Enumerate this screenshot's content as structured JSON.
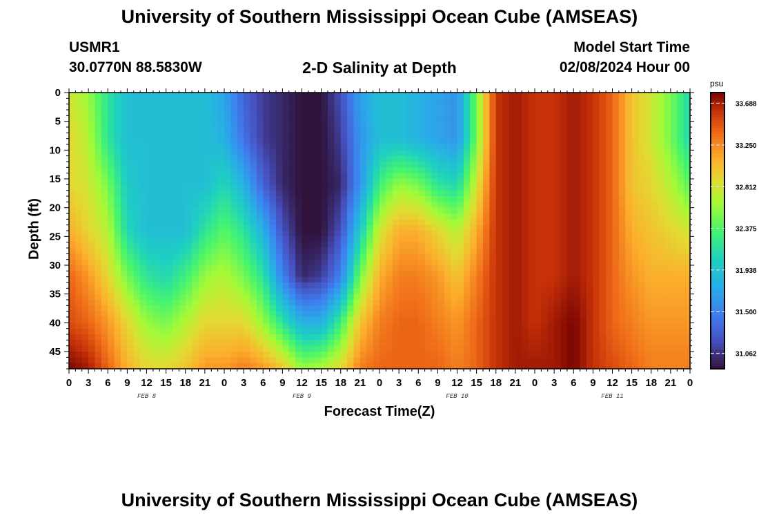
{
  "header": {
    "title": "University of Southern Mississippi Ocean Cube (AMSEAS)",
    "station_id": "USMR1",
    "station_coords": "30.0770N  88.5830W",
    "subtitle": "2-D Salinity at Depth",
    "model_start_label": "Model Start Time",
    "model_start_value": "02/08/2024 Hour 00"
  },
  "footer": {
    "title_repeat": "University of Southern Mississippi Ocean Cube (AMSEAS)"
  },
  "chart_data": {
    "type": "heatmap",
    "title": "2-D Salinity at Depth",
    "xlabel": "Forecast Time(Z)",
    "ylabel": "Depth (ft)",
    "x_hours_from_start": [
      0,
      96
    ],
    "x_tick_labels": [
      "0",
      "3",
      "6",
      "9",
      "12",
      "15",
      "18",
      "21",
      "0",
      "3",
      "6",
      "9",
      "12",
      "15",
      "18",
      "21",
      "0",
      "3",
      "6",
      "9",
      "12",
      "15",
      "18",
      "21",
      "0",
      "3",
      "6",
      "9",
      "12",
      "15",
      "18",
      "21",
      "0"
    ],
    "date_labels": [
      "FEB 8",
      "FEB 9",
      "FEB 10",
      "FEB 11"
    ],
    "y_ticks": [
      0,
      5,
      10,
      15,
      20,
      25,
      30,
      35,
      40,
      45
    ],
    "ylim": [
      0,
      48
    ],
    "y_inverted": true,
    "colorbar": {
      "unit": "psu",
      "min": 30.9,
      "max": 33.8,
      "tick_labels": [
        "33.688",
        "33.250",
        "32.812",
        "32.375",
        "31.938",
        "31.500",
        "31.062"
      ],
      "colormap": "turbo"
    },
    "grid_time_hours": [
      0,
      3,
      6,
      9,
      12,
      15,
      18,
      21,
      24,
      27,
      30,
      33,
      36,
      39,
      42,
      45,
      48,
      51,
      54,
      57,
      60,
      63,
      66,
      69,
      72,
      75,
      78,
      81,
      84,
      87,
      90,
      93,
      96
    ],
    "grid_depth_ft": [
      0,
      8,
      16,
      24,
      32,
      40,
      48
    ],
    "salinity_psu": [
      [
        32.8,
        32.6,
        32.2,
        31.9,
        31.9,
        31.9,
        31.9,
        31.9,
        31.7,
        31.3,
        31.1,
        31.0,
        30.9,
        30.9,
        31.2,
        31.7,
        31.9,
        31.9,
        31.8,
        31.7,
        31.6,
        32.5,
        33.6,
        33.7,
        33.6,
        33.6,
        33.7,
        33.6,
        33.4,
        33.0,
        32.8,
        32.5,
        32.1
      ],
      [
        32.9,
        32.7,
        32.2,
        31.9,
        31.9,
        31.9,
        31.9,
        31.9,
        31.8,
        31.4,
        31.1,
        31.0,
        30.9,
        30.9,
        31.1,
        31.6,
        31.9,
        31.9,
        31.8,
        31.7,
        31.6,
        32.5,
        33.6,
        33.7,
        33.6,
        33.6,
        33.7,
        33.6,
        33.4,
        33.0,
        32.8,
        32.5,
        32.1
      ],
      [
        32.9,
        32.8,
        32.5,
        32.0,
        31.9,
        31.9,
        31.9,
        31.9,
        32.1,
        31.8,
        31.3,
        31.0,
        30.9,
        30.9,
        31.0,
        31.6,
        32.3,
        32.6,
        32.5,
        32.2,
        32.1,
        32.8,
        33.6,
        33.7,
        33.6,
        33.6,
        33.7,
        33.6,
        33.4,
        33.0,
        32.9,
        32.7,
        32.4
      ],
      [
        33.1,
        32.9,
        32.7,
        32.1,
        31.9,
        31.9,
        31.9,
        32.2,
        32.4,
        32.2,
        31.8,
        31.2,
        30.9,
        30.9,
        31.2,
        32.0,
        32.8,
        33.1,
        33.1,
        32.9,
        32.7,
        33.1,
        33.6,
        33.7,
        33.6,
        33.6,
        33.7,
        33.6,
        33.4,
        33.1,
        33.0,
        32.9,
        32.8
      ],
      [
        33.4,
        33.2,
        32.9,
        32.5,
        32.2,
        32.1,
        32.3,
        32.6,
        32.7,
        32.5,
        32.2,
        31.5,
        31.0,
        31.1,
        31.5,
        32.5,
        33.1,
        33.3,
        33.3,
        33.2,
        33.0,
        33.3,
        33.6,
        33.7,
        33.6,
        33.6,
        33.7,
        33.6,
        33.4,
        33.2,
        33.1,
        33.1,
        33.1
      ],
      [
        33.5,
        33.4,
        33.2,
        32.9,
        32.6,
        32.5,
        32.7,
        32.9,
        32.9,
        32.9,
        32.6,
        32.2,
        31.8,
        31.8,
        32.3,
        33.0,
        33.3,
        33.4,
        33.4,
        33.3,
        33.2,
        33.4,
        33.6,
        33.7,
        33.6,
        33.7,
        33.8,
        33.6,
        33.4,
        33.3,
        33.2,
        33.2,
        33.2
      ],
      [
        33.8,
        33.7,
        33.4,
        33.1,
        32.9,
        32.9,
        33.0,
        33.2,
        33.2,
        33.3,
        33.2,
        33.0,
        32.6,
        32.7,
        32.9,
        33.3,
        33.4,
        33.4,
        33.4,
        33.4,
        33.3,
        33.4,
        33.6,
        33.7,
        33.7,
        33.7,
        33.8,
        33.6,
        33.5,
        33.4,
        33.3,
        33.3,
        33.3
      ]
    ]
  }
}
